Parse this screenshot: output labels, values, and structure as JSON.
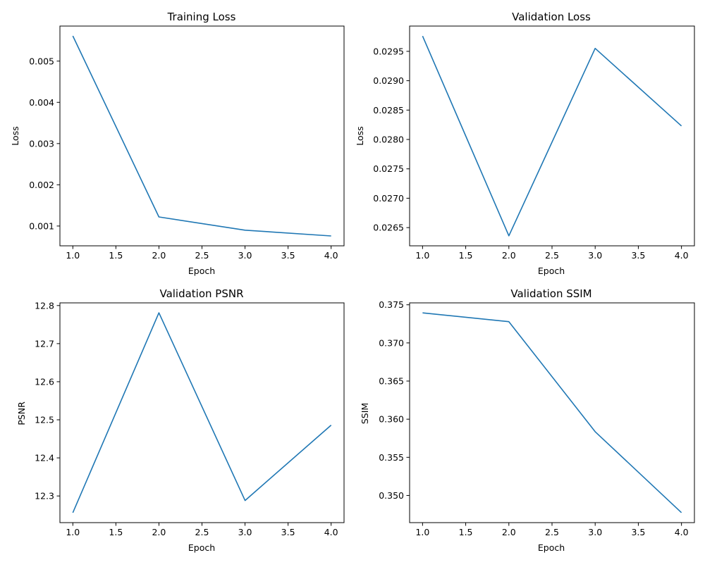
{
  "figure": {
    "background": "#ffffff"
  },
  "chart_data": [
    {
      "type": "line",
      "title": "Training Loss",
      "xlabel": "Epoch",
      "ylabel": "Loss",
      "grid": false,
      "color": "#1f77b4",
      "x": [
        1,
        2,
        3,
        4
      ],
      "series": [
        {
          "values": [
            0.00561,
            0.00122,
            0.0009,
            0.00076
          ]
        }
      ],
      "xlim": [
        0.85,
        4.15
      ],
      "ylim": [
        0.00052,
        0.00585
      ],
      "xticks": [
        1.0,
        1.5,
        2.0,
        2.5,
        3.0,
        3.5,
        4.0
      ],
      "xtick_labels": [
        "1.0",
        "1.5",
        "2.0",
        "2.5",
        "3.0",
        "3.5",
        "4.0"
      ],
      "yticks": [
        0.001,
        0.002,
        0.003,
        0.004,
        0.005
      ],
      "ytick_labels": [
        "0.001",
        "0.002",
        "0.003",
        "0.004",
        "0.005"
      ]
    },
    {
      "type": "line",
      "title": "Validation Loss",
      "xlabel": "Epoch",
      "ylabel": "Loss",
      "grid": false,
      "color": "#1f77b4",
      "x": [
        1,
        2,
        3,
        4
      ],
      "series": [
        {
          "values": [
            0.02976,
            0.02636,
            0.02955,
            0.02823
          ]
        }
      ],
      "xlim": [
        0.85,
        4.15
      ],
      "ylim": [
        0.02619,
        0.02993
      ],
      "xticks": [
        1.0,
        1.5,
        2.0,
        2.5,
        3.0,
        3.5,
        4.0
      ],
      "xtick_labels": [
        "1.0",
        "1.5",
        "2.0",
        "2.5",
        "3.0",
        "3.5",
        "4.0"
      ],
      "yticks": [
        0.0265,
        0.027,
        0.0275,
        0.028,
        0.0285,
        0.029,
        0.0295
      ],
      "ytick_labels": [
        "0.0265",
        "0.0270",
        "0.0275",
        "0.0280",
        "0.0285",
        "0.0290",
        "0.0295"
      ]
    },
    {
      "type": "line",
      "title": "Validation PSNR",
      "xlabel": "Epoch",
      "ylabel": "PSNR",
      "grid": false,
      "color": "#1f77b4",
      "x": [
        1,
        2,
        3,
        4
      ],
      "series": [
        {
          "values": [
            12.256,
            12.781,
            12.288,
            12.486
          ]
        }
      ],
      "xlim": [
        0.85,
        4.15
      ],
      "ylim": [
        12.23,
        12.807
      ],
      "xticks": [
        1.0,
        1.5,
        2.0,
        2.5,
        3.0,
        3.5,
        4.0
      ],
      "xtick_labels": [
        "1.0",
        "1.5",
        "2.0",
        "2.5",
        "3.0",
        "3.5",
        "4.0"
      ],
      "yticks": [
        12.3,
        12.4,
        12.5,
        12.6,
        12.7,
        12.8
      ],
      "ytick_labels": [
        "12.3",
        "12.4",
        "12.5",
        "12.6",
        "12.7",
        "12.8"
      ]
    },
    {
      "type": "line",
      "title": "Validation SSIM",
      "xlabel": "Epoch",
      "ylabel": "SSIM",
      "grid": false,
      "color": "#1f77b4",
      "x": [
        1,
        2,
        3,
        4
      ],
      "series": [
        {
          "values": [
            0.37394,
            0.37278,
            0.35836,
            0.34775
          ]
        }
      ],
      "xlim": [
        0.85,
        4.15
      ],
      "ylim": [
        0.34644,
        0.37525
      ],
      "xticks": [
        1.0,
        1.5,
        2.0,
        2.5,
        3.0,
        3.5,
        4.0
      ],
      "xtick_labels": [
        "1.0",
        "1.5",
        "2.0",
        "2.5",
        "3.0",
        "3.5",
        "4.0"
      ],
      "yticks": [
        0.35,
        0.355,
        0.36,
        0.365,
        0.37,
        0.375
      ],
      "ytick_labels": [
        "0.350",
        "0.355",
        "0.360",
        "0.365",
        "0.370",
        "0.375"
      ]
    }
  ]
}
